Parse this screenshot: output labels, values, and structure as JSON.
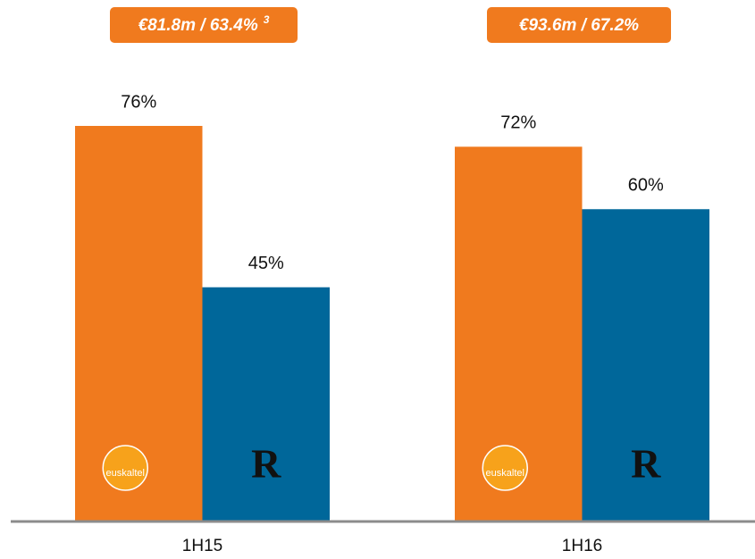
{
  "chart_data": {
    "type": "bar",
    "categories": [
      "1H15",
      "1H16"
    ],
    "series": [
      {
        "name": "euskaltel",
        "color": "#f07a1e",
        "values": [
          76,
          72
        ],
        "value_labels": [
          "76%",
          "72%"
        ]
      },
      {
        "name": "R",
        "color": "#00679a",
        "values": [
          45,
          60
        ],
        "value_labels": [
          "45%",
          "60%"
        ]
      }
    ],
    "annotations": [
      {
        "text": "€81.8m / 63.4%",
        "sup": "3"
      },
      {
        "text": "€93.6m / 67.2%"
      }
    ]
  }
}
